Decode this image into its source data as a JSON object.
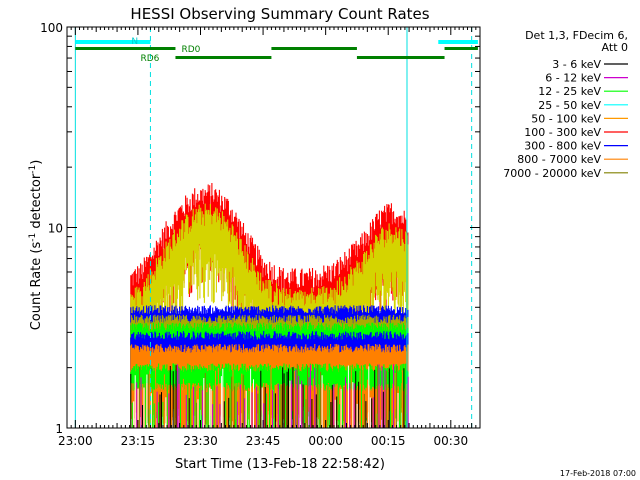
{
  "chart_data": {
    "type": "line",
    "title": "HESSI Observing Summary Count Rates",
    "xlabel": "Start Time (13-Feb-18 22:58:42)",
    "ylabel": "Count Rate (s^-1 detector^-1)",
    "ylabel_parts": {
      "base": "Count Rate (s",
      "exp1": "-1",
      "mid": " detector",
      "exp2": "-1",
      "end": ")"
    },
    "yscale": "log",
    "ylim": [
      1,
      100
    ],
    "xlim_minutes": [
      -2,
      97
    ],
    "x_ticks": [
      {
        "label": "23:00",
        "m": 0
      },
      {
        "label": "23:15",
        "m": 15
      },
      {
        "label": "23:30",
        "m": 30
      },
      {
        "label": "23:45",
        "m": 45
      },
      {
        "label": "00:00",
        "m": 60
      },
      {
        "label": "00:15",
        "m": 75
      },
      {
        "label": "00:30",
        "m": 90
      }
    ],
    "y_ticks": [
      {
        "label": "1",
        "v": 1
      },
      {
        "label": "10",
        "v": 10
      },
      {
        "label": "100",
        "v": 100
      }
    ],
    "legend_header": [
      "Det 1,3, FDecim 6,",
      "Att 0"
    ],
    "series": [
      {
        "name": "3 - 6 keV",
        "color": "#000000"
      },
      {
        "name": "6 - 12 keV",
        "color": "#cc00cc"
      },
      {
        "name": "12 - 25 keV",
        "color": "#00ff00"
      },
      {
        "name": "25 - 50 keV",
        "color": "#00ffff"
      },
      {
        "name": "50 - 100 keV",
        "color": "#ff9900"
      },
      {
        "name": "100 - 300 keV",
        "color": "#ff0000"
      },
      {
        "name": "300 - 800 keV",
        "color": "#0000ff"
      },
      {
        "name": "800 - 7000 keV",
        "color": "#ff8000"
      },
      {
        "name": "7000 - 20000 keV",
        "color": "#808000"
      }
    ],
    "data_window_minutes": [
      13.3,
      79.8
    ],
    "envelope": {
      "description_of_points": "peak count rate vs minutes after 23:00",
      "points": [
        {
          "m": 13.3,
          "v": 6.0
        },
        {
          "m": 16,
          "v": 6.5
        },
        {
          "m": 20,
          "v": 9.0
        },
        {
          "m": 25,
          "v": 13.0
        },
        {
          "m": 29,
          "v": 15.5
        },
        {
          "m": 33,
          "v": 16.0
        },
        {
          "m": 37,
          "v": 13.5
        },
        {
          "m": 41,
          "v": 9.5
        },
        {
          "m": 45,
          "v": 7.0
        },
        {
          "m": 50,
          "v": 6.0
        },
        {
          "m": 56,
          "v": 6.0
        },
        {
          "m": 62,
          "v": 6.5
        },
        {
          "m": 68,
          "v": 8.5
        },
        {
          "m": 73,
          "v": 12.0
        },
        {
          "m": 76,
          "v": 13.0
        },
        {
          "m": 79.8,
          "v": 11.5
        }
      ]
    },
    "count_levels": [
      {
        "color": "#ff0000",
        "level": 5.0,
        "follows_envelope": true
      },
      {
        "color": "#d4d400",
        "level": 4.5,
        "follows_envelope": true,
        "scale": 0.8
      },
      {
        "color": "#0000ff",
        "level": 3.9
      },
      {
        "color": "#aaaa00",
        "level": 3.5
      },
      {
        "color": "#00ff00",
        "level": 3.2
      },
      {
        "color": "#0000ff",
        "level": 2.9
      },
      {
        "color": "#ff8000",
        "level": 2.5
      },
      {
        "color": "#00ff00",
        "level": 2.0
      },
      {
        "color": "#ff8000",
        "level": 1.6
      }
    ],
    "cyan_bars": [
      {
        "m0": 0,
        "m1": 18,
        "label": "N"
      },
      {
        "m0": 87,
        "m1": 96.5,
        "label": ""
      }
    ],
    "green_bars": [
      {
        "m0": 0,
        "m1": 24,
        "row": 1,
        "label": "RD0"
      },
      {
        "m0": 24,
        "m1": 47,
        "row": 2,
        "label": "RD6"
      },
      {
        "m0": 47,
        "m1": 67.5,
        "row": 1,
        "label": ""
      },
      {
        "m0": 67.5,
        "m1": 88.5,
        "row": 2,
        "label": ""
      },
      {
        "m0": 88.5,
        "m1": 96.5,
        "row": 1,
        "label": ""
      }
    ],
    "vlines_solid": [
      0,
      79.5
    ],
    "vlines_dashed": [
      18,
      95
    ],
    "footer_date": "17-Feb-2018 07:00"
  }
}
